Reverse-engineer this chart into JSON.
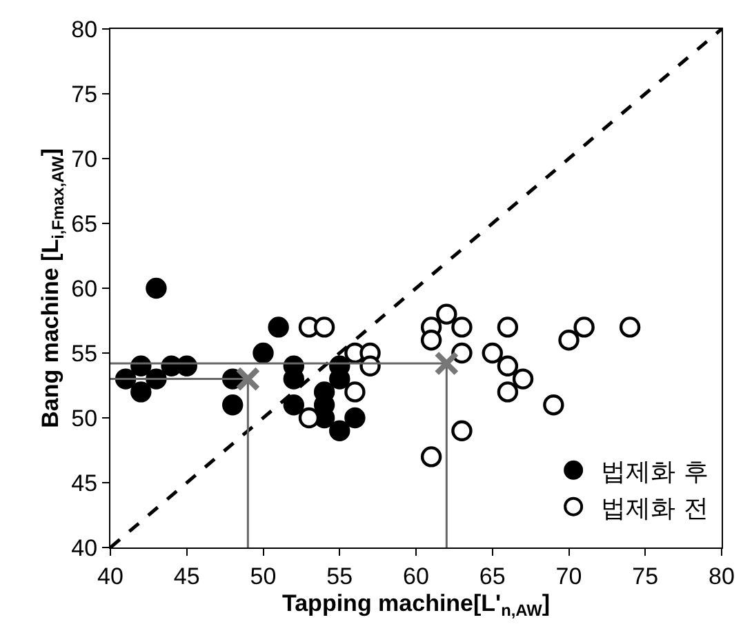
{
  "chart_data": {
    "type": "scatter",
    "xlabel": "Tapping machine[L'$_{n,AW}$]",
    "ylabel": "Bang machine [L$_{i,Fmax,AW}$]",
    "xlim": [
      40,
      80
    ],
    "ylim": [
      40,
      80
    ],
    "xticks": [
      40,
      45,
      50,
      55,
      60,
      65,
      70,
      75,
      80
    ],
    "yticks": [
      40,
      45,
      50,
      55,
      60,
      65,
      70,
      75,
      80
    ],
    "legend": "bottom right",
    "series": [
      {
        "name": "법제화 후",
        "color": "#000000",
        "marker": "circle",
        "x": [
          41,
          42,
          42,
          43,
          43,
          44,
          45,
          48,
          48,
          50,
          51,
          52,
          52,
          52,
          54,
          54,
          54,
          55,
          55,
          55,
          56
        ],
        "values": [
          53,
          54,
          52,
          53,
          60,
          54,
          54,
          53,
          51,
          55,
          57,
          54,
          53,
          51,
          52,
          51,
          50,
          54,
          53,
          49,
          50
        ]
      },
      {
        "name": "법제화 전",
        "color": "#ffffff",
        "marker": "circle",
        "x": [
          53,
          54,
          56,
          57,
          57,
          56,
          53,
          61,
          62,
          63,
          61,
          63,
          63,
          61,
          66,
          65,
          66,
          67,
          66,
          69,
          70,
          71,
          74
        ],
        "values": [
          57,
          57,
          55,
          55,
          54,
          52,
          50,
          57,
          58,
          57,
          56,
          55,
          49,
          47,
          57,
          55,
          54,
          53,
          52,
          51,
          56,
          57,
          57
        ]
      },
      {
        "type": "line",
        "color": "#000000",
        "line_style": "dashed",
        "marker": "none",
        "x": [
          40,
          80
        ],
        "values": [
          40,
          80
        ]
      },
      {
        "type": "line",
        "color": "#666666",
        "line_style": "solid",
        "marker": "none",
        "x": [
          40,
          49,
          49
        ],
        "values": [
          53,
          53,
          40
        ]
      },
      {
        "type": "line",
        "color": "#666666",
        "line_style": "solid",
        "marker": "none",
        "x": [
          40,
          62,
          62
        ],
        "values": [
          54.2,
          54.2,
          40
        ]
      },
      {
        "color": "#777777",
        "marker": "cross",
        "x": [
          49,
          62
        ],
        "values": [
          53,
          54.2
        ]
      }
    ]
  }
}
